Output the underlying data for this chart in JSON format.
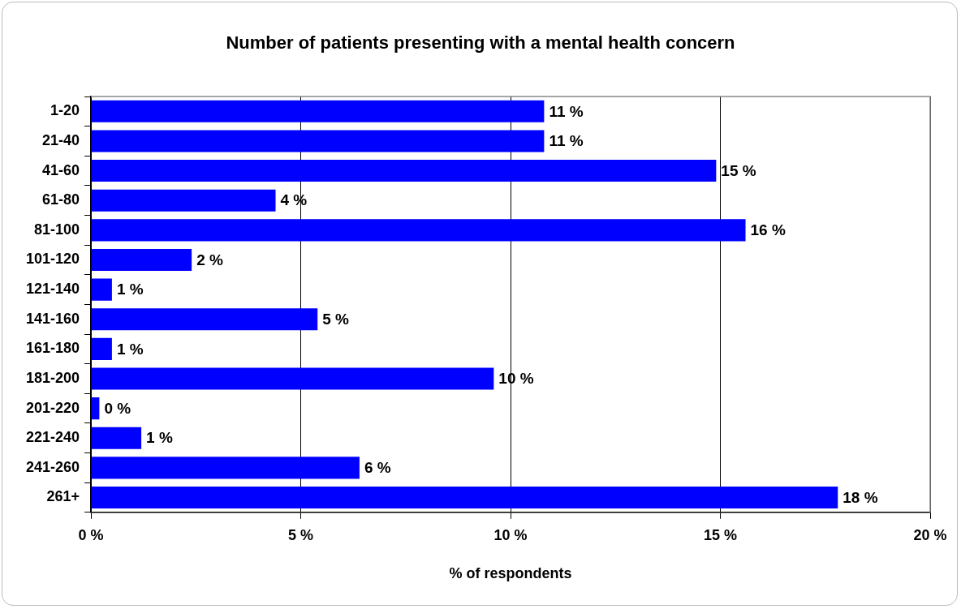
{
  "chart_data": {
    "type": "bar",
    "orientation": "horizontal",
    "title": "Number of patients presenting with a mental health concern",
    "xlabel": "% of respondents",
    "categories": [
      "1-20",
      "21-40",
      "41-60",
      "61-80",
      "81-100",
      "101-120",
      "121-140",
      "141-160",
      "161-180",
      "181-200",
      "201-220",
      "221-240",
      "241-260",
      "261+"
    ],
    "values": [
      10.8,
      10.8,
      14.9,
      4.4,
      15.6,
      2.4,
      0.5,
      5.4,
      0.5,
      9.6,
      0.2,
      1.2,
      6.4,
      17.8
    ],
    "value_labels": [
      "11 %",
      "11 %",
      "15 %",
      "4 %",
      "16 %",
      "2 %",
      "1 %",
      "5 %",
      "1 %",
      "10 %",
      "0 %",
      "1 %",
      "6 %",
      "18 %"
    ],
    "color": "#0000ff",
    "xlim": [
      0,
      20
    ],
    "xticks": [
      {
        "value": 0,
        "label": "0 %"
      },
      {
        "value": 5,
        "label": "5 %"
      },
      {
        "value": 10,
        "label": "10 %"
      },
      {
        "value": 15,
        "label": "15 %"
      },
      {
        "value": 20,
        "label": "20 %"
      }
    ],
    "grid": "x",
    "legend": false
  }
}
